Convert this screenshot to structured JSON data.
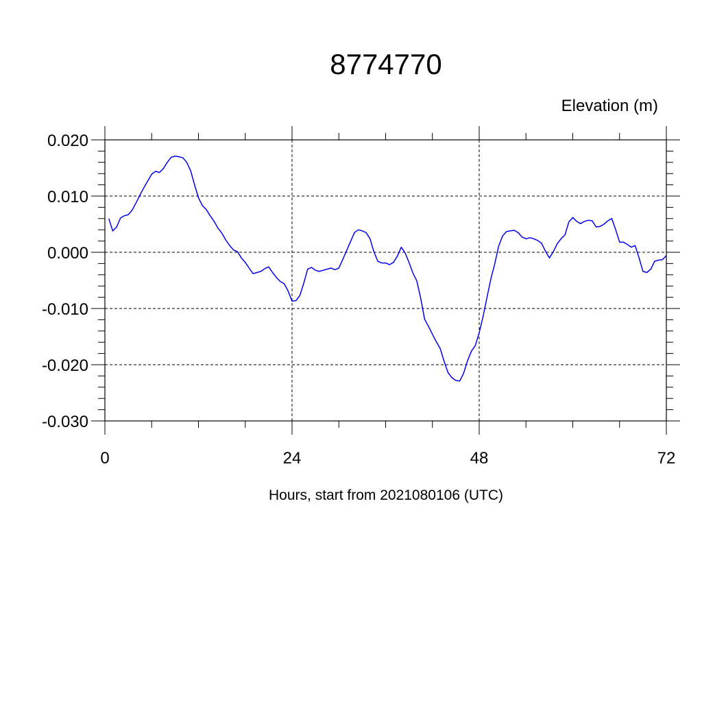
{
  "chart_data": {
    "type": "line",
    "title": "8774770",
    "units_label": "Elevation (m)",
    "xlabel": "Hours, start from 2021080106 (UTC)",
    "xlim": [
      0,
      72
    ],
    "ylim": [
      -0.03,
      0.02
    ],
    "x_ticks": [
      0,
      24,
      48,
      72
    ],
    "x_tick_labels": [
      "0",
      "24",
      "48",
      "72"
    ],
    "y_ticks": [
      0.02,
      0.01,
      0.0,
      -0.01,
      -0.02,
      -0.03
    ],
    "y_tick_labels": [
      "0.020",
      "0.010",
      "0.000",
      "-0.010",
      "-0.020",
      "-0.030"
    ],
    "grid": true,
    "line_color": "#0000ee",
    "series": [
      {
        "x": [
          0.5,
          1,
          1.5,
          2,
          2.5,
          3,
          3.5,
          4,
          4.5,
          5,
          5.5,
          6,
          6.5,
          7,
          7.5,
          8,
          8.5,
          9,
          9.5,
          10,
          10.5,
          11,
          11.5,
          12,
          12.5,
          13,
          13.5,
          14,
          14.5,
          15,
          15.5,
          16,
          16.5,
          17,
          17.5,
          18,
          18.5,
          19,
          19.5,
          20,
          20.5,
          21,
          21.5,
          22,
          22.5,
          23,
          23.5,
          24,
          24.5,
          25,
          25.5,
          26,
          26.5,
          27,
          27.5,
          28,
          28.5,
          29,
          29.5,
          30,
          30.5,
          31,
          31.5,
          32,
          32.5,
          33,
          33.5,
          34,
          34.5,
          35,
          35.5,
          36,
          36.5,
          37,
          37.5,
          38,
          38.5,
          39,
          39.5,
          40,
          40.5,
          41,
          41.5,
          42,
          42.5,
          43,
          43.5,
          44,
          44.5,
          45,
          45.5,
          46,
          46.5,
          47,
          47.5,
          48,
          48.5,
          49,
          49.5,
          50,
          50.5,
          51,
          51.5,
          52,
          52.5,
          53,
          53.5,
          54,
          54.5,
          55,
          55.5,
          56,
          56.5,
          57,
          57.5,
          58,
          58.5,
          59,
          59.5,
          60,
          60.5,
          61,
          61.5,
          62,
          62.5,
          63,
          63.5,
          64,
          64.5,
          65,
          65.5,
          66,
          66.5,
          67,
          67.5,
          68,
          68.5,
          69,
          69.5,
          70,
          70.5,
          71,
          71.5,
          72
        ],
        "y": [
          0.006,
          0.0038,
          0.0045,
          0.0061,
          0.0065,
          0.0067,
          0.0075,
          0.0088,
          0.0102,
          0.0115,
          0.0127,
          0.0139,
          0.0144,
          0.0142,
          0.0149,
          0.016,
          0.0169,
          0.0171,
          0.017,
          0.0168,
          0.016,
          0.0145,
          0.012,
          0.0097,
          0.0083,
          0.0076,
          0.0065,
          0.0055,
          0.0043,
          0.0034,
          0.0022,
          0.0012,
          0.0004,
          0.0001,
          -0.001,
          -0.0018,
          -0.0028,
          -0.0038,
          -0.0036,
          -0.0034,
          -0.0029,
          -0.0026,
          -0.0036,
          -0.0045,
          -0.0052,
          -0.0056,
          -0.0069,
          -0.0087,
          -0.0086,
          -0.0077,
          -0.0055,
          -0.003,
          -0.0027,
          -0.0032,
          -0.0034,
          -0.0032,
          -0.003,
          -0.0028,
          -0.0031,
          -0.0028,
          -0.0013,
          0.0003,
          0.0019,
          0.0035,
          0.004,
          0.0038,
          0.0035,
          0.0024,
          0.0001,
          -0.0016,
          -0.0019,
          -0.0019,
          -0.0022,
          -0.0018,
          -0.0007,
          0.0009,
          -0.0001,
          -0.0018,
          -0.0037,
          -0.0051,
          -0.0082,
          -0.0119,
          -0.0132,
          -0.0146,
          -0.0159,
          -0.0171,
          -0.0194,
          -0.0214,
          -0.0223,
          -0.0228,
          -0.0229,
          -0.0215,
          -0.0193,
          -0.0176,
          -0.0166,
          -0.0143,
          -0.0114,
          -0.008,
          -0.0047,
          -0.002,
          0.0011,
          0.0029,
          0.0037,
          0.0038,
          0.0039,
          0.0035,
          0.0027,
          0.0024,
          0.0026,
          0.0024,
          0.0021,
          0.0016,
          0.0002,
          -0.001,
          0.0001,
          0.0015,
          0.0024,
          0.0031,
          0.0054,
          0.0062,
          0.0055,
          0.0051,
          0.0055,
          0.0057,
          0.0056,
          0.0045,
          0.0046,
          0.005,
          0.0056,
          0.006,
          0.004,
          0.0018,
          0.0018,
          0.0014,
          0.0009,
          0.0012,
          -0.001,
          -0.0034,
          -0.0036,
          -0.003,
          -0.0016,
          -0.0014,
          -0.0013,
          -0.0006
        ]
      }
    ]
  }
}
